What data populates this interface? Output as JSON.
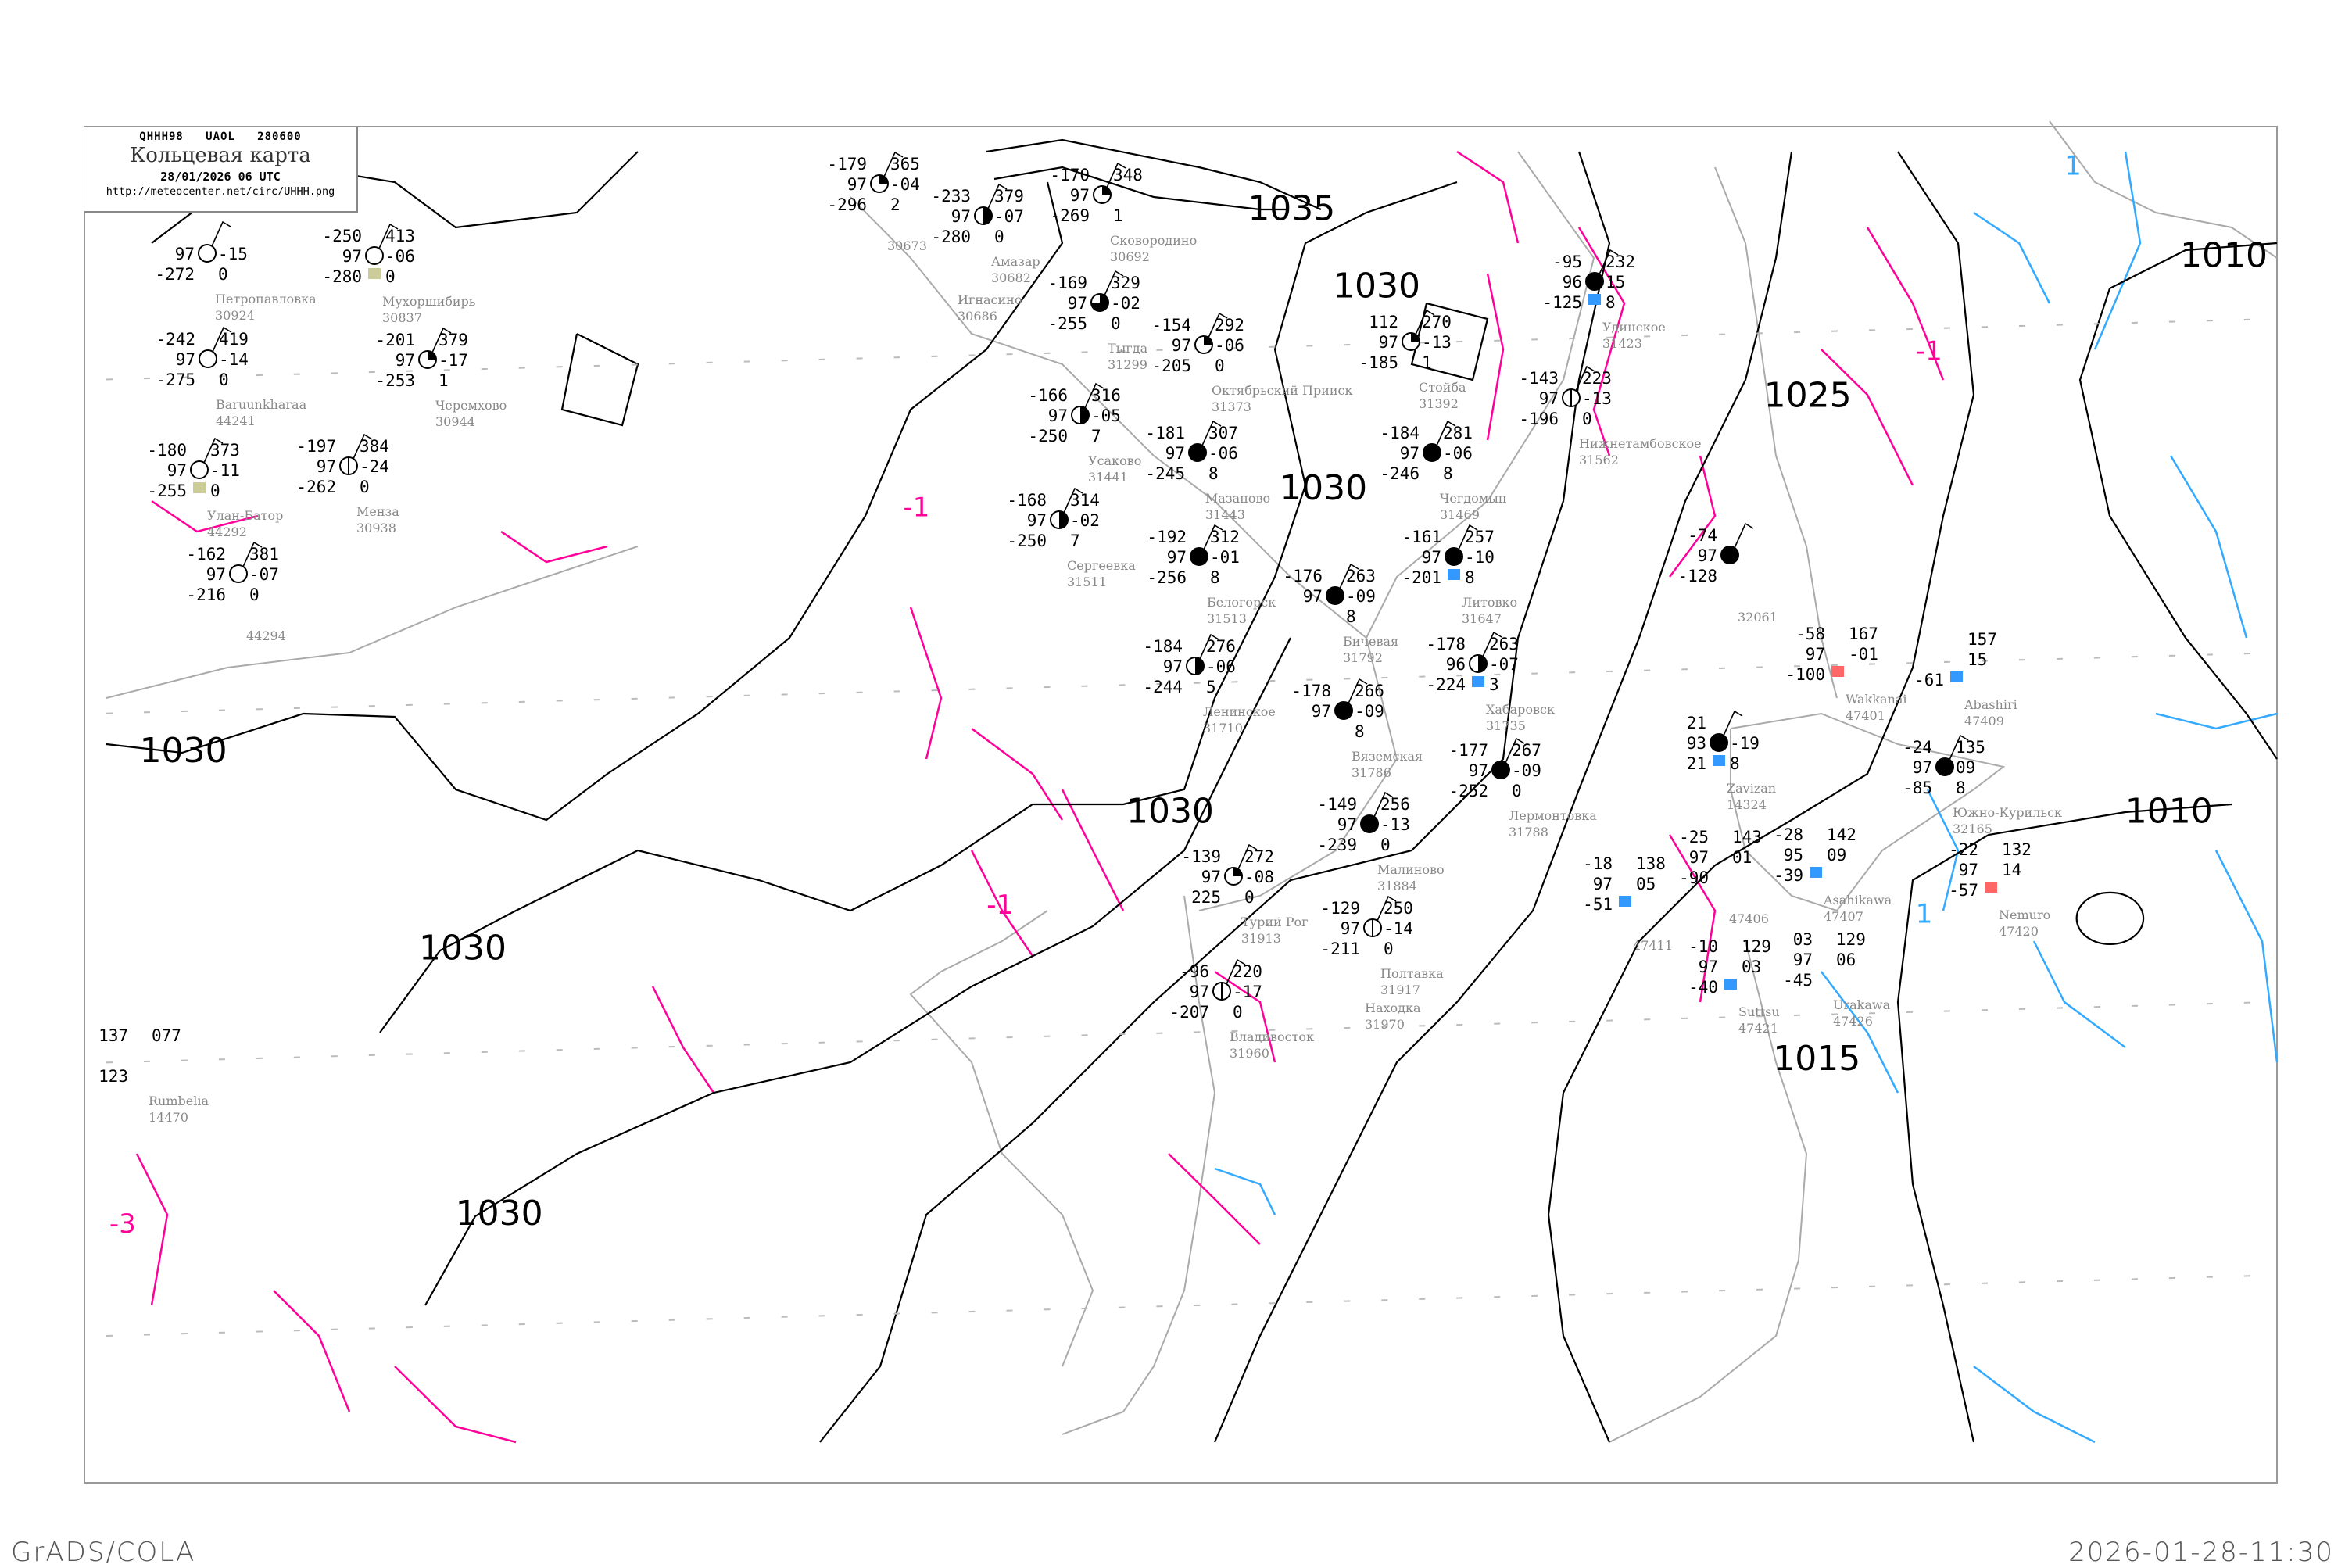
{
  "header": {
    "code": "QHHH98   UAOL   280600",
    "title": "Кольцевая карта",
    "date": "28/01/2026 06 UTC",
    "url": "http://meteocenter.net/circ/UHHH.png"
  },
  "footer": {
    "left": "GrADS/COLA",
    "right": "2026-01-28-11:30"
  },
  "colors": {
    "isobar": "#000000",
    "coastline": "#aaaaaa",
    "isotherm_negative": "#ff0099",
    "isotherm_positive": "#33aaff",
    "frame": "#999999",
    "marker_snow": "#3399ff",
    "marker_warm": "#ff6666",
    "marker_dry": "#cccc99"
  },
  "isobar_labels": [
    {
      "id": "i1035",
      "text": "1035"
    },
    {
      "id": "i1030a",
      "text": "1030"
    },
    {
      "id": "i1030b",
      "text": "1030"
    },
    {
      "id": "i1030c",
      "text": "1030"
    },
    {
      "id": "i1030d",
      "text": "1030"
    },
    {
      "id": "i1030e",
      "text": "1030"
    },
    {
      "id": "i1030f",
      "text": "1030"
    },
    {
      "id": "i1025",
      "text": "1025"
    },
    {
      "id": "i1015",
      "text": "1015"
    },
    {
      "id": "i1010a",
      "text": "1010"
    },
    {
      "id": "i1010b",
      "text": "1010"
    }
  ],
  "isotherm_labels": [
    {
      "id": "t1",
      "text": "-1",
      "sign": "neg"
    },
    {
      "id": "t2",
      "text": "-1",
      "sign": "neg"
    },
    {
      "id": "t3",
      "text": "-1",
      "sign": "neg"
    },
    {
      "id": "t4",
      "text": "1",
      "sign": "pos"
    },
    {
      "id": "t5",
      "text": "1",
      "sign": "pos"
    },
    {
      "id": "t6",
      "text": "-3",
      "sign": "neg"
    }
  ],
  "stations": [
    {
      "id": "30924",
      "name": "Петропавловка",
      "tl": "",
      "ml": "97",
      "bl": "-272",
      "tr": "",
      "mr": "-15",
      "br": "0",
      "cover": 0
    },
    {
      "id": "30837",
      "name": "Мухоршибирь",
      "tl": "-250",
      "ml": "97",
      "bl": "-280",
      "tr": "413",
      "mr": "-06",
      "br": "0",
      "cover": 0,
      "marker": "dry"
    },
    {
      "id": "30944",
      "name": "Черемхово",
      "tl": "-201",
      "ml": "97",
      "bl": "-253",
      "tr": "379",
      "mr": "-17",
      "br": "1",
      "cover": 0.25
    },
    {
      "id": "44241",
      "name": "Baruunkharaa",
      "tl": "-242",
      "ml": "97",
      "bl": "-275",
      "tr": "419",
      "mr": "-14",
      "br": "0",
      "cover": 0
    },
    {
      "id": "30938",
      "name": "Менза",
      "tl": "-197",
      "ml": "97",
      "bl": "-262",
      "tr": "384",
      "mr": "-24",
      "br": "0",
      "cover": "line"
    },
    {
      "id": "44292",
      "name": "Улан-Батор",
      "tl": "-180",
      "ml": "97",
      "bl": "-255",
      "tr": "373",
      "mr": "-11",
      "br": "0",
      "cover": 0,
      "marker": "dry"
    },
    {
      "id": "44294",
      "name": "",
      "tl": "-162",
      "ml": "97",
      "bl": "-216",
      "tr": "381",
      "mr": "-07",
      "br": "0",
      "cover": 0
    },
    {
      "id": "30673",
      "name": "",
      "tl": "-179",
      "ml": "97",
      "bl": "-296",
      "tr": "365",
      "mr": "-04",
      "br": "2",
      "cover": 0.25
    },
    {
      "id": "30682",
      "name": "Амазар",
      "tl": "-233",
      "ml": "97",
      "bl": "-280",
      "tr": "379",
      "mr": "-07",
      "br": "0",
      "cover": 0.5
    },
    {
      "id": "30686",
      "name": "Игнасино",
      "tl": "",
      "ml": "",
      "bl": "",
      "tr": "",
      "mr": "",
      "br": "",
      "cover": "none"
    },
    {
      "id": "30692",
      "name": "Сковородино",
      "tl": "-170",
      "ml": "97",
      "bl": "-269",
      "tr": "348",
      "mr": "",
      "br": "1",
      "cover": 0.25
    },
    {
      "id": "31299",
      "name": "Тыгда",
      "tl": "-169",
      "ml": "97",
      "bl": "-255",
      "tr": "329",
      "mr": "-02",
      "br": "0",
      "cover": 0.75
    },
    {
      "id": "31373",
      "name": "Октябрьский Прииск",
      "tl": "-154",
      "ml": "97",
      "bl": "-205",
      "tr": "292",
      "mr": "-06",
      "br": "0",
      "cover": 0.25
    },
    {
      "id": "31441",
      "name": "Усаково",
      "tl": "-166",
      "ml": "97",
      "bl": "-250",
      "tr": "316",
      "mr": "-05",
      "br": "7",
      "cover": 0.5
    },
    {
      "id": "31443",
      "name": "Мазаново",
      "tl": "-181",
      "ml": "97",
      "bl": "-245",
      "tr": "307",
      "mr": "-06",
      "br": "8",
      "cover": 1
    },
    {
      "id": "31511",
      "name": "Сергеевка",
      "tl": "-168",
      "ml": "97",
      "bl": "-250",
      "tr": "314",
      "mr": "-02",
      "br": "7",
      "cover": 0.5
    },
    {
      "id": "31513",
      "name": "Белогорск",
      "tl": "-192",
      "ml": "97",
      "bl": "-256",
      "tr": "312",
      "mr": "-01",
      "br": "8",
      "cover": 1
    },
    {
      "id": "31392",
      "name": "Стойба",
      "tl": "112",
      "ml": "97",
      "bl": "-185",
      "tr": "270",
      "mr": "-13",
      "br": "1",
      "cover": 0.25
    },
    {
      "id": "31469",
      "name": "Чегдомын",
      "tl": "-184",
      "ml": "97",
      "bl": "-246",
      "tr": "281",
      "mr": "-06",
      "br": "8",
      "cover": 1
    },
    {
      "id": "31423",
      "name": "Удинское",
      "tl": "-95",
      "ml": "96",
      "bl": "-125",
      "tr": "232",
      "mr": "15",
      "br": "8",
      "cover": 1,
      "marker": "snow"
    },
    {
      "id": "31562",
      "name": "Нижнетамбовское",
      "tl": "-143",
      "ml": "97",
      "bl": "-196",
      "tr": "223",
      "mr": "-13",
      "br": "0",
      "cover": "line"
    },
    {
      "id": "31647",
      "name": "Литовко",
      "tl": "-161",
      "ml": "97",
      "bl": "-201",
      "tr": "257",
      "mr": "-10",
      "br": "8",
      "cover": 1,
      "marker": "snow"
    },
    {
      "id": "31735",
      "name": "Хабаровск",
      "tl": "-178",
      "ml": "96",
      "bl": "-224",
      "tr": "263",
      "mr": "-07",
      "br": "3",
      "cover": 0.5,
      "marker": "snow"
    },
    {
      "id": "31792",
      "name": "Бичевая",
      "tl": "-176",
      "ml": "97",
      "bl": "",
      "tr": "263",
      "mr": "-09",
      "br": "8",
      "cover": 1
    },
    {
      "id": "31786",
      "name": "Вяземская",
      "tl": "-178",
      "ml": "97",
      "bl": "",
      "tr": "266",
      "mr": "-09",
      "br": "8",
      "cover": 1
    },
    {
      "id": "31788",
      "name": "Лермонтовка",
      "tl": "-177",
      "ml": "97",
      "bl": "-252",
      "tr": "267",
      "mr": "-09",
      "br": "0",
      "cover": 1
    },
    {
      "id": "31710",
      "name": "Ленинское",
      "tl": "-184",
      "ml": "97",
      "bl": "-244",
      "tr": "276",
      "mr": "-06",
      "br": "5",
      "cover": 0.5
    },
    {
      "id": "32061",
      "name": "",
      "tl": "-74",
      "ml": "97",
      "bl": "-128",
      "tr": "",
      "mr": "",
      "br": "",
      "cover": 1
    },
    {
      "id": "31884",
      "name": "Малиново",
      "tl": "-149",
      "ml": "97",
      "bl": "-239",
      "tr": "256",
      "mr": "-13",
      "br": "0",
      "cover": 1
    },
    {
      "id": "31913",
      "name": "Турий Рог",
      "tl": "-139",
      "ml": "97",
      "bl": "225",
      "tr": "272",
      "mr": "-08",
      "br": "0",
      "cover": 0.25
    },
    {
      "id": "31917",
      "name": "Полтавка",
      "tl": "-129",
      "ml": "97",
      "bl": "-211",
      "tr": "250",
      "mr": "-14",
      "br": "0",
      "cover": "line"
    },
    {
      "id": "31960",
      "name": "Владивосток",
      "tl": "-96",
      "ml": "97",
      "bl": "-207",
      "tr": "220",
      "mr": "-17",
      "br": "0",
      "cover": "line"
    },
    {
      "id": "31970",
      "name": "Находка",
      "tl": "",
      "ml": "",
      "bl": "",
      "tr": "",
      "mr": "",
      "br": "",
      "cover": "none"
    },
    {
      "id": "14324",
      "name": "Zavizan",
      "tl": "21",
      "ml": "93",
      "bl": "21",
      "tr": "",
      "mr": "-19",
      "br": "8",
      "cover": 1,
      "marker": "snow"
    },
    {
      "id": "32165",
      "name": "Южно-Курильск",
      "tl": "-24",
      "ml": "97",
      "bl": "-85",
      "tr": "135",
      "mr": "09",
      "br": "8",
      "cover": 1
    },
    {
      "id": "47401",
      "name": "Wakkanai",
      "tl": "-58",
      "ml": "97",
      "bl": "-100",
      "tr": "167",
      "mr": "-01",
      "br": "",
      "cover": "none",
      "marker": "warm"
    },
    {
      "id": "47407",
      "name": "Asahikawa",
      "tl": "-28",
      "ml": "95",
      "bl": "-39",
      "tr": "142",
      "mr": "09",
      "br": "",
      "cover": "none",
      "marker": "snow"
    },
    {
      "id": "47409",
      "name": "Abashiri",
      "tl": "",
      "ml": "",
      "bl": "-61",
      "tr": "157",
      "mr": "15",
      "br": "",
      "cover": "none",
      "marker": "snow"
    },
    {
      "id": "47420",
      "name": "Nemuro",
      "tl": "-22",
      "ml": "97",
      "bl": "-57",
      "tr": "132",
      "mr": "14",
      "br": "",
      "cover": "none",
      "marker": "warm"
    },
    {
      "id": "47406",
      "name": "",
      "tl": "-25",
      "ml": "97",
      "bl": "-90",
      "tr": "143",
      "mr": "01",
      "br": "",
      "cover": "none"
    },
    {
      "id": "47426",
      "name": "Urakawa",
      "tl": "03",
      "ml": "97",
      "bl": "-45",
      "tr": "129",
      "mr": "06",
      "br": "",
      "cover": "none"
    },
    {
      "id": "47411",
      "name": "",
      "tl": "-18",
      "ml": "97",
      "bl": "-51",
      "tr": "138",
      "mr": "05",
      "br": "",
      "cover": "none",
      "marker": "snow"
    },
    {
      "id": "47421",
      "name": "Suttsu",
      "tl": "-10",
      "ml": "97",
      "bl": "-40",
      "tr": "129",
      "mr": "03",
      "br": "",
      "cover": "none",
      "marker": "snow"
    },
    {
      "id": "14470",
      "name": "Rumbelia",
      "tl": "137",
      "ml": "",
      "bl": "123",
      "tr": "077",
      "mr": "",
      "br": "",
      "cover": "none"
    }
  ]
}
